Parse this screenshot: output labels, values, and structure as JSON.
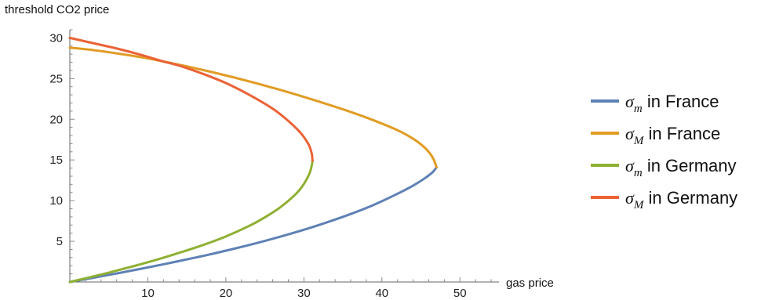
{
  "chart_data": {
    "type": "line",
    "title": "",
    "xlabel": "gas price",
    "ylabel": "threshold CO2 price",
    "xlim": [
      0,
      55
    ],
    "ylim": [
      0,
      31
    ],
    "x_ticks": [
      10,
      20,
      30,
      40,
      50
    ],
    "y_ticks": [
      5,
      10,
      15,
      20,
      25,
      30
    ],
    "grid": false,
    "legend_position": "right",
    "series": [
      {
        "name": "σm in France",
        "legend": {
          "symbol": "σ",
          "subscript": "m",
          "suffix": " in France"
        },
        "color": "#5E81B5",
        "points": [
          [
            0,
            0
          ],
          [
            3,
            0.52
          ],
          [
            6,
            1.05
          ],
          [
            9,
            1.6
          ],
          [
            12,
            2.17
          ],
          [
            15,
            2.78
          ],
          [
            18,
            3.4
          ],
          [
            21,
            4.08
          ],
          [
            24,
            4.8
          ],
          [
            27,
            5.58
          ],
          [
            30,
            6.42
          ],
          [
            33,
            7.35
          ],
          [
            36,
            8.36
          ],
          [
            39,
            9.5
          ],
          [
            42,
            10.85
          ],
          [
            44,
            11.85
          ],
          [
            45.5,
            12.75
          ],
          [
            46.5,
            13.5
          ],
          [
            47,
            14.1
          ]
        ]
      },
      {
        "name": "σM in France",
        "legend": {
          "symbol": "σ",
          "subscript": "M",
          "suffix": " in France"
        },
        "color": "#E19C24",
        "points": [
          [
            47,
            14.1
          ],
          [
            46.5,
            15.3
          ],
          [
            45.5,
            16.5
          ],
          [
            44,
            17.6
          ],
          [
            42,
            18.65
          ],
          [
            39,
            19.85
          ],
          [
            36,
            20.9
          ],
          [
            33,
            21.85
          ],
          [
            30,
            22.75
          ],
          [
            27,
            23.6
          ],
          [
            24,
            24.4
          ],
          [
            21,
            25.15
          ],
          [
            18,
            25.85
          ],
          [
            15,
            26.5
          ],
          [
            12,
            27.1
          ],
          [
            9,
            27.65
          ],
          [
            6,
            28.1
          ],
          [
            3,
            28.5
          ],
          [
            0,
            28.8
          ]
        ]
      },
      {
        "name": "σm in Germany",
        "legend": {
          "symbol": "σ",
          "subscript": "m",
          "suffix": " in Germany"
        },
        "color": "#8FB032",
        "points": [
          [
            0,
            0
          ],
          [
            2,
            0.45
          ],
          [
            5,
            1.15
          ],
          [
            8,
            1.9
          ],
          [
            11,
            2.7
          ],
          [
            14,
            3.58
          ],
          [
            17,
            4.52
          ],
          [
            20,
            5.6
          ],
          [
            23,
            6.9
          ],
          [
            25,
            7.95
          ],
          [
            27,
            9.2
          ],
          [
            29,
            10.85
          ],
          [
            30,
            12.05
          ],
          [
            30.7,
            13.3
          ],
          [
            31,
            14.3
          ],
          [
            31.1,
            14.9
          ]
        ]
      },
      {
        "name": "σM in Germany",
        "legend": {
          "symbol": "σ",
          "subscript": "M",
          "suffix": " in Germany"
        },
        "color": "#EB6235",
        "points": [
          [
            31.1,
            14.9
          ],
          [
            31,
            15.8
          ],
          [
            30.6,
            16.9
          ],
          [
            29.6,
            18.3
          ],
          [
            28,
            19.8
          ],
          [
            26,
            21.3
          ],
          [
            23,
            23.0
          ],
          [
            20,
            24.45
          ],
          [
            17,
            25.6
          ],
          [
            14,
            26.6
          ],
          [
            12,
            27.1
          ],
          [
            9,
            27.95
          ],
          [
            6,
            28.7
          ],
          [
            3,
            29.35
          ],
          [
            0,
            30.0
          ]
        ]
      }
    ]
  }
}
